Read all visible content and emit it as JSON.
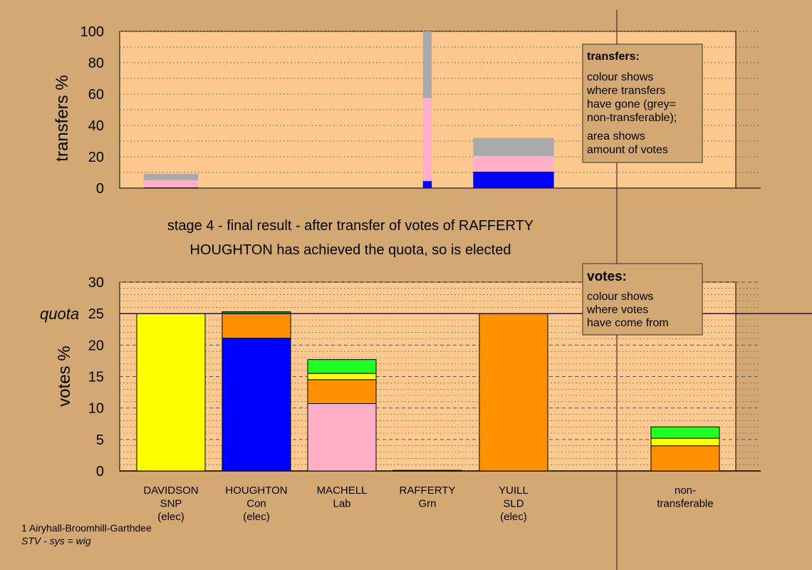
{
  "colors": {
    "background": "#d4a873",
    "plot_bg": "#fdc98e",
    "grey": "#aaaaaa",
    "pink": "#ffb0c8",
    "blue": "#0000ff",
    "yellow": "#ffff00",
    "orange": "#ff9000",
    "green": "#22ff22",
    "dark_green": "#228b22"
  },
  "heading": {
    "line1": "stage 4 - final result - after transfer of votes of RAFFERTY",
    "line2": "HOUGHTON has achieved the quota, so is elected"
  },
  "footer": {
    "line1": "1 Airyhall-Broomhill-Garthdee",
    "line2": "STV - sys = wig"
  },
  "chart_data": [
    {
      "type": "bar",
      "name": "transfers",
      "ylabel": "transfers %",
      "ylim": [
        0,
        100
      ],
      "yticks": [
        0,
        20,
        40,
        60,
        80,
        100
      ],
      "legend": {
        "title": "transfers:",
        "lines_a": [
          "colour shows",
          "where transfers",
          "have gone (grey=",
          "non-transferable);"
        ],
        "lines_b": [
          "area shows",
          "amount of votes"
        ]
      },
      "bars": [
        {
          "candidate": "DAVIDSON",
          "width_frac": 0.8,
          "segments": [
            {
              "color": "blue",
              "value": 0.5
            },
            {
              "color": "pink",
              "value": 4.5
            },
            {
              "color": "grey",
              "value": 4
            }
          ]
        },
        {
          "candidate": "RAFFERTY",
          "width_frac": 0.13,
          "segments": [
            {
              "color": "blue",
              "value": 4.5
            },
            {
              "color": "pink",
              "value": 53
            },
            {
              "color": "grey",
              "value": 42.5
            }
          ]
        },
        {
          "candidate": "YUILL",
          "width_frac": 1.18,
          "segments": [
            {
              "color": "blue",
              "value": 10.5
            },
            {
              "color": "pink",
              "value": 10
            },
            {
              "color": "grey",
              "value": 11.5
            }
          ]
        }
      ]
    },
    {
      "type": "bar",
      "name": "votes",
      "ylabel": "votes %",
      "ylim": [
        0,
        30
      ],
      "yticks": [
        0,
        5,
        10,
        15,
        20,
        25,
        30
      ],
      "quota": 25,
      "quota_label": "quota",
      "legend": {
        "title": "votes:",
        "lines": [
          "colour shows",
          "where votes",
          "have come from"
        ]
      },
      "categories": [
        {
          "lines": [
            "DAVIDSON",
            "SNP",
            "(elec)"
          ]
        },
        {
          "lines": [
            "HOUGHTON",
            "Con",
            "(elec)"
          ]
        },
        {
          "lines": [
            "MACHELL",
            "Lab"
          ]
        },
        {
          "lines": [
            "RAFFERTY",
            "Grn"
          ]
        },
        {
          "lines": [
            "YUILL",
            "SLD",
            "(elec)"
          ]
        },
        {
          "lines": [
            "non-",
            "transferable"
          ]
        }
      ],
      "bars": [
        {
          "candidate": "DAVIDSON",
          "segments": [
            {
              "color": "yellow",
              "value": 25
            }
          ]
        },
        {
          "candidate": "HOUGHTON",
          "segments": [
            {
              "color": "blue",
              "value": 21.1
            },
            {
              "color": "orange",
              "value": 3.9
            },
            {
              "color": "dark_green",
              "value": 0.3
            }
          ]
        },
        {
          "candidate": "MACHELL",
          "segments": [
            {
              "color": "pink",
              "value": 10.7
            },
            {
              "color": "orange",
              "value": 3.8
            },
            {
              "color": "yellow",
              "value": 1
            },
            {
              "color": "green",
              "value": 2.2
            }
          ]
        },
        {
          "candidate": "RAFFERTY",
          "segments": [
            {
              "color": "green",
              "value": 0.1
            }
          ]
        },
        {
          "candidate": "YUILL",
          "segments": [
            {
              "color": "orange",
              "value": 25
            }
          ]
        },
        {
          "candidate": "non-transferable",
          "segments": [
            {
              "color": "orange",
              "value": 4
            },
            {
              "color": "yellow",
              "value": 1.2
            },
            {
              "color": "green",
              "value": 1.8
            }
          ]
        }
      ]
    }
  ]
}
